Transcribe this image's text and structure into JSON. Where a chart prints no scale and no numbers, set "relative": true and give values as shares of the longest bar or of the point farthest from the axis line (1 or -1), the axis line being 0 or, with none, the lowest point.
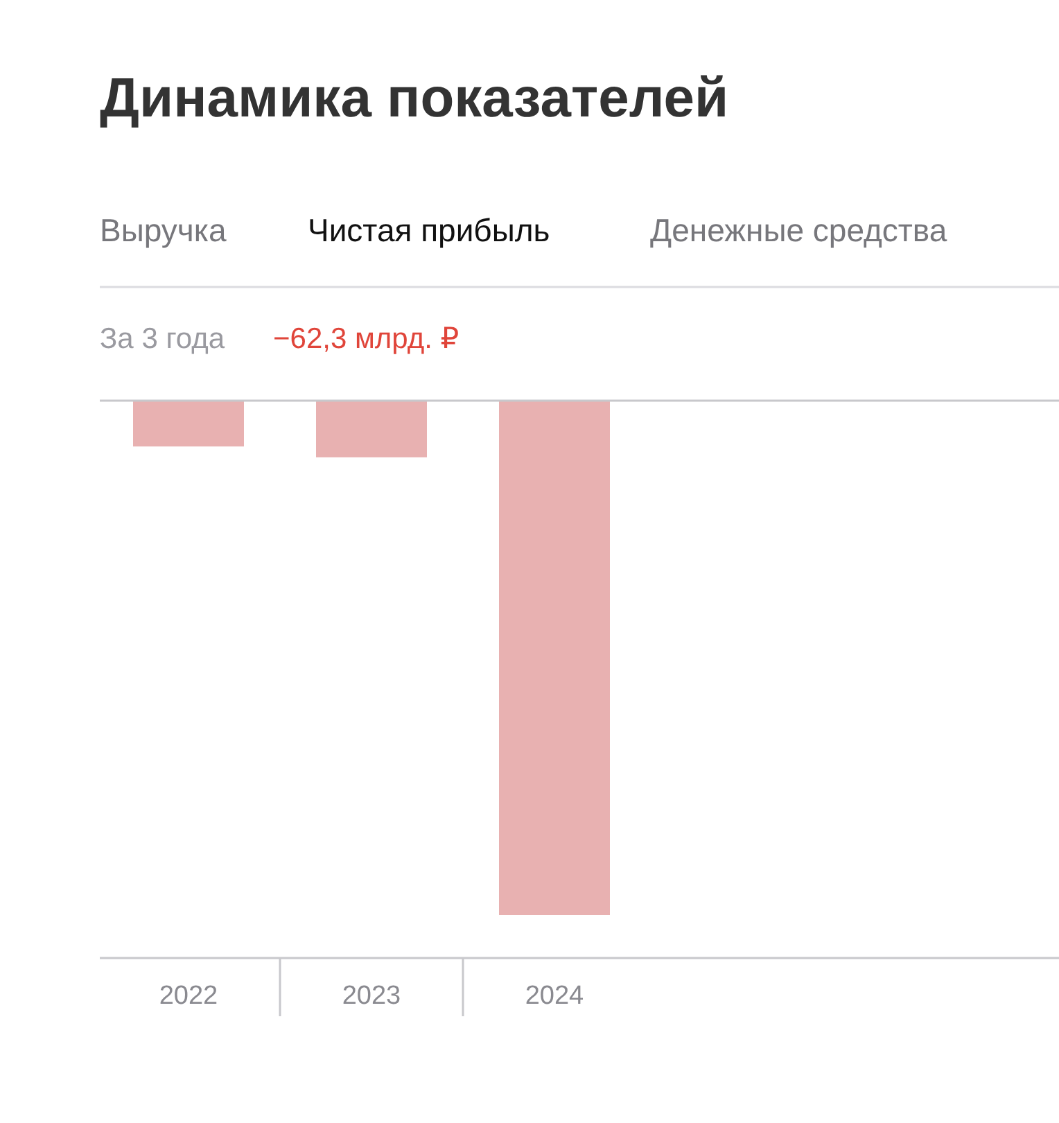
{
  "chart_data": {
    "type": "bar",
    "title": "Динамика показателей",
    "relative": true,
    "annotations": [
      "Выручка",
      "Чистая прибыль",
      "Денежные средства",
      "За 3 года",
      "−62,3 млрд. ₽"
    ],
    "categories": [
      "2022",
      "2023",
      "2024"
    ],
    "values": [
      -0.089,
      -0.11,
      -1
    ],
    "color": "#e8b1b1"
  }
}
